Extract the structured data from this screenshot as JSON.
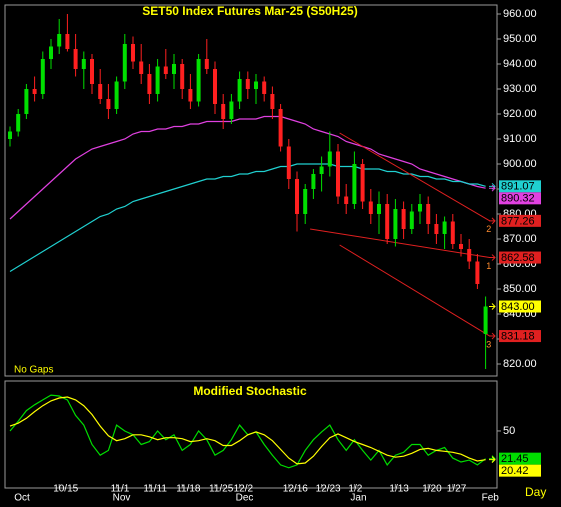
{
  "chart_data": [
    {
      "type": "candlestick",
      "title": "SET50 Index Futures Mar-25 (S50H25)",
      "annotation": "No Gaps",
      "x_unit_label": "Day",
      "categories": [
        null,
        null,
        null,
        null,
        null,
        null,
        "10/15",
        null,
        null,
        null,
        null,
        null,
        null,
        "11/1",
        null,
        null,
        null,
        "11/11",
        null,
        null,
        null,
        "11/18",
        null,
        null,
        null,
        "11/25",
        null,
        null,
        "12/2",
        null,
        null,
        null,
        null,
        null,
        "12/16",
        null,
        null,
        null,
        "12/23",
        null,
        null,
        null,
        "1/2",
        null,
        null,
        null,
        null,
        "1/13",
        null,
        null,
        null,
        "1/20",
        null,
        null,
        "1/27",
        null,
        null,
        null,
        null
      ],
      "month_categories": [
        null,
        "Oct",
        null,
        null,
        null,
        null,
        null,
        null,
        null,
        null,
        null,
        null,
        null,
        "Nov",
        null,
        null,
        null,
        null,
        null,
        null,
        null,
        null,
        null,
        null,
        null,
        null,
        null,
        null,
        "Dec",
        null,
        null,
        null,
        null,
        null,
        null,
        null,
        null,
        null,
        null,
        null,
        null,
        null,
        "Jan",
        null,
        null,
        null,
        null,
        null,
        null,
        null,
        null,
        null,
        null,
        null,
        null,
        null,
        null,
        null,
        "Feb"
      ],
      "open": [
        910,
        913,
        920,
        930,
        928,
        942,
        947,
        952,
        946,
        938,
        942,
        932,
        926,
        922,
        933,
        948,
        941,
        936,
        928,
        939,
        936,
        940,
        930,
        925,
        942,
        938,
        924,
        918,
        925,
        934,
        930,
        933,
        928,
        922,
        907,
        894,
        880,
        890,
        896,
        899,
        905,
        887,
        884,
        900,
        885,
        880,
        884,
        870,
        882,
        874,
        881,
        884,
        876,
        872,
        877,
        868,
        866,
        861,
        832
      ],
      "high": [
        915,
        922,
        932,
        935,
        945,
        950,
        958,
        960,
        952,
        945,
        944,
        938,
        932,
        935,
        952,
        951,
        948,
        940,
        942,
        946,
        944,
        942,
        936,
        944,
        950,
        941,
        928,
        928,
        937,
        937,
        936,
        935,
        931,
        924,
        910,
        897,
        892,
        898,
        903,
        913,
        908,
        892,
        905,
        902,
        890,
        889,
        888,
        886,
        885,
        884,
        888,
        887,
        880,
        879,
        880,
        872,
        870,
        864,
        847
      ],
      "low": [
        907,
        911,
        918,
        925,
        926,
        938,
        944,
        945,
        935,
        930,
        928,
        924,
        918,
        920,
        930,
        938,
        932,
        924,
        925,
        934,
        930,
        926,
        922,
        923,
        936,
        920,
        914,
        916,
        922,
        926,
        924,
        925,
        918,
        905,
        890,
        873,
        876,
        886,
        889,
        895,
        884,
        880,
        882,
        882,
        876,
        872,
        868,
        867,
        870,
        872,
        876,
        872,
        868,
        866,
        866,
        863,
        858,
        850,
        818
      ],
      "close": [
        913,
        920,
        930,
        928,
        942,
        947,
        952,
        946,
        938,
        942,
        932,
        926,
        922,
        933,
        948,
        941,
        936,
        928,
        939,
        936,
        940,
        930,
        925,
        942,
        938,
        924,
        918,
        925,
        934,
        930,
        933,
        928,
        922,
        907,
        894,
        880,
        890,
        896,
        899,
        905,
        887,
        884,
        900,
        885,
        880,
        884,
        870,
        882,
        874,
        881,
        884,
        876,
        872,
        877,
        868,
        866,
        861,
        852,
        843
      ],
      "last_close_label": "843.00",
      "up_color": "#00e000",
      "down_color": "#ff2020",
      "close_box_color": "#ffff00",
      "series": [
        {
          "name": "MA short",
          "color": "#e040e0",
          "values": [
            878,
            881,
            884,
            887,
            890,
            893,
            896,
            899,
            902,
            904,
            906,
            907,
            908,
            909,
            910,
            912,
            913,
            913,
            914,
            914,
            915,
            915,
            916,
            916,
            917,
            917,
            917,
            917,
            918,
            918,
            918,
            919,
            919,
            919,
            918,
            917,
            916,
            914,
            913,
            912,
            911,
            909,
            908,
            907,
            906,
            904,
            903,
            902,
            901,
            900,
            898,
            897,
            896,
            895,
            894,
            893,
            892,
            891,
            890.32
          ]
        },
        {
          "name": "MA long",
          "color": "#20d0d0",
          "values": [
            857,
            859,
            861,
            863,
            865,
            867,
            869,
            871,
            873,
            875,
            877,
            879,
            880,
            882,
            883,
            885,
            886,
            887,
            888,
            889,
            890,
            891,
            892,
            893,
            894,
            894,
            895,
            895,
            896,
            896,
            897,
            897,
            898,
            899,
            899,
            900,
            900,
            900,
            900,
            900,
            899,
            899,
            899,
            898,
            898,
            898,
            897,
            897,
            896,
            896,
            895,
            895,
            894,
            894,
            893,
            893,
            892,
            892,
            891.07
          ]
        }
      ],
      "trendlines": [
        {
          "label": "2",
          "color": "#e02020",
          "x": [
            40.2,
            58.5
          ],
          "values": [
            912.4,
            877.26
          ]
        },
        {
          "label": "1",
          "color": "#e02020",
          "x": [
            36.6,
            58.5
          ],
          "values": [
            874,
            862.58
          ]
        },
        {
          "label": "3",
          "color": "#e02020",
          "x": [
            40.2,
            58.5
          ],
          "values": [
            867.6,
            831.18
          ]
        }
      ],
      "ylim": [
        815.2,
        963.6
      ],
      "yticks": [
        {
          "value": 820,
          "label": "820.00"
        },
        {
          "value": 830,
          "label": "830.00"
        },
        {
          "value": 840,
          "label": "840.00"
        },
        {
          "value": 850,
          "label": "850.00"
        },
        {
          "value": 860,
          "label": "860.00"
        },
        {
          "value": 870,
          "label": "870.00"
        },
        {
          "value": 880,
          "label": "880.00"
        },
        {
          "value": 890,
          "label": "890.00"
        },
        {
          "value": 900,
          "label": "900.00"
        },
        {
          "value": 910,
          "label": "910.00"
        },
        {
          "value": 920,
          "label": "920.00"
        },
        {
          "value": 930,
          "label": "930.00"
        },
        {
          "value": 940,
          "label": "940.00"
        },
        {
          "value": 950,
          "label": "950.00"
        },
        {
          "value": 960,
          "label": "960.00"
        }
      ]
    },
    {
      "type": "line",
      "title": "Modified Stochastic",
      "series": [
        {
          "name": "%K",
          "color": "#00dd00",
          "values": [
            50,
            60,
            71,
            77,
            82,
            87,
            86,
            82,
            66,
            56,
            36,
            25,
            30,
            56,
            50,
            46,
            36,
            39,
            50,
            41,
            46,
            30,
            36,
            50,
            41,
            25,
            30,
            41,
            56,
            46,
            49,
            36,
            25,
            15,
            12,
            15,
            30,
            41,
            49,
            56,
            41,
            30,
            41,
            30,
            20,
            30,
            15,
            25,
            28,
            36,
            36,
            25,
            30,
            33,
            22,
            18,
            20,
            15,
            21.45
          ]
        },
        {
          "name": "%D",
          "color": "#ffff00",
          "values": [
            55,
            58,
            63,
            70,
            76,
            81,
            84,
            85,
            82,
            76,
            67,
            55,
            45,
            40,
            42,
            46,
            46,
            44,
            41,
            43,
            43,
            42,
            39,
            40,
            42,
            40,
            35,
            35,
            40,
            46,
            49,
            46,
            40,
            31,
            22,
            16,
            17,
            24,
            34,
            43,
            47,
            43,
            39,
            36,
            33,
            29,
            25,
            23,
            24,
            27,
            31,
            32,
            30,
            29,
            28,
            26,
            22,
            19,
            20.42
          ]
        }
      ],
      "ylim": [
        -8.8,
        101.5
      ],
      "yticks": [
        50
      ]
    }
  ]
}
